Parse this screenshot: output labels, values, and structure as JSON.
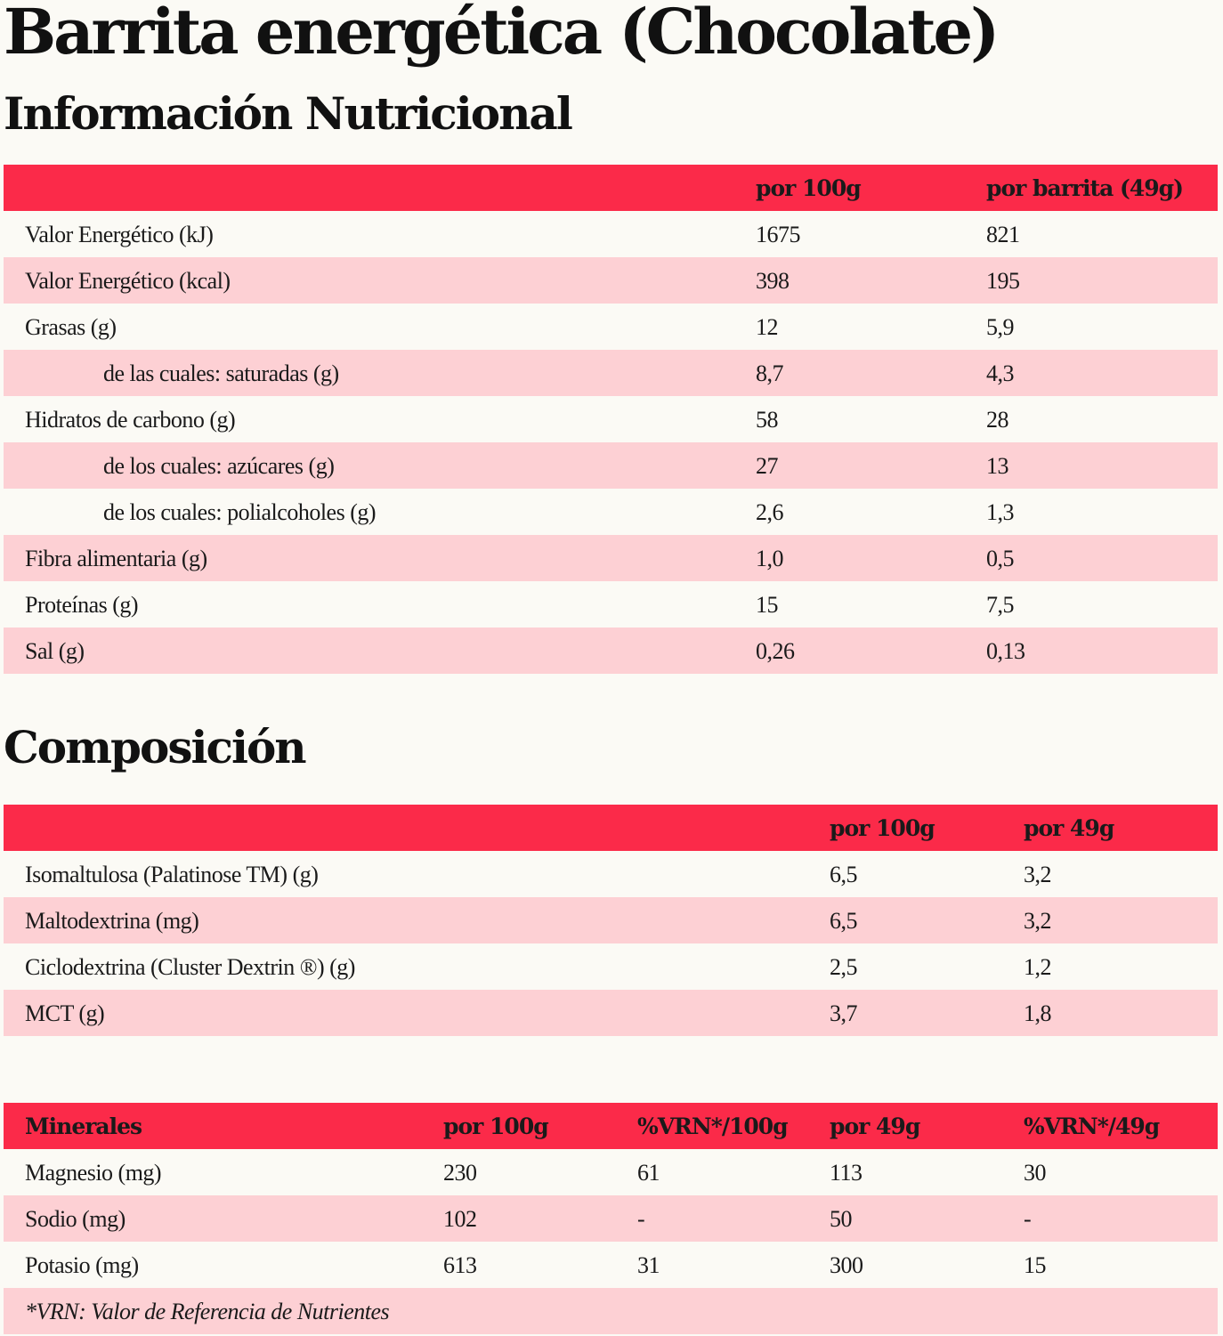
{
  "page": {
    "title": "Barrita energética (Chocolate)",
    "section_nutrition": "Información Nutricional",
    "section_composition": "Composición"
  },
  "nutrition": {
    "headers": [
      "",
      "por 100g",
      "por barrita (49g)"
    ],
    "rows": [
      {
        "label": "Valor Energético (kJ)",
        "per100": "1675",
        "perBar": "821"
      },
      {
        "label": "Valor Energético (kcal)",
        "per100": "398",
        "perBar": "195"
      },
      {
        "label": "Grasas (g)",
        "per100": "12",
        "perBar": "5,9"
      },
      {
        "label": "de las cuales: saturadas (g)",
        "per100": "8,7",
        "perBar": "4,3"
      },
      {
        "label": "Hidratos de carbono (g)",
        "per100": "58",
        "perBar": "28"
      },
      {
        "label": "de los cuales: azúcares (g)",
        "per100": "27",
        "perBar": "13"
      },
      {
        "label": "de los cuales: polialcoholes (g)",
        "per100": "2,6",
        "perBar": "1,3"
      },
      {
        "label": "Fibra alimentaria (g)",
        "per100": "1,0",
        "perBar": "0,5"
      },
      {
        "label": "Proteínas (g)",
        "per100": "15",
        "perBar": "7,5"
      },
      {
        "label": "Sal (g)",
        "per100": "0,26",
        "perBar": "0,13"
      }
    ]
  },
  "composition": {
    "headers": [
      "",
      "por 100g",
      "por 49g"
    ],
    "rows": [
      {
        "label": "Isomaltulosa (Palatinose TM) (g)",
        "per100": "6,5",
        "per49": "3,2"
      },
      {
        "label": "Maltodextrina (mg)",
        "per100": "6,5",
        "per49": "3,2"
      },
      {
        "label": "Ciclodextrina (Cluster Dextrin ®) (g)",
        "per100": "2,5",
        "per49": "1,2"
      },
      {
        "label": "MCT (g)",
        "per100": "3,7",
        "per49": "1,8"
      }
    ]
  },
  "minerals": {
    "headers": [
      "Minerales",
      "por 100g",
      "%VRN*/100g",
      "por 49g",
      "%VRN*/49g"
    ],
    "rows": [
      {
        "label": "Magnesio (mg)",
        "per100": "230",
        "vrn100": "61",
        "per49": "113",
        "vrn49": "30"
      },
      {
        "label": "Sodio (mg)",
        "per100": "102",
        "vrn100": "-",
        "per49": "50",
        "vrn49": "-"
      },
      {
        "label": "Potasio (mg)",
        "per100": "613",
        "vrn100": "31",
        "per49": "300",
        "vrn49": "15"
      }
    ],
    "footnote": "*VRN: Valor de Referencia de Nutrientes"
  },
  "colors": {
    "header_red": "#fb2a49",
    "row_pink": "#fdd0d4",
    "background": "#fbfaf5"
  }
}
